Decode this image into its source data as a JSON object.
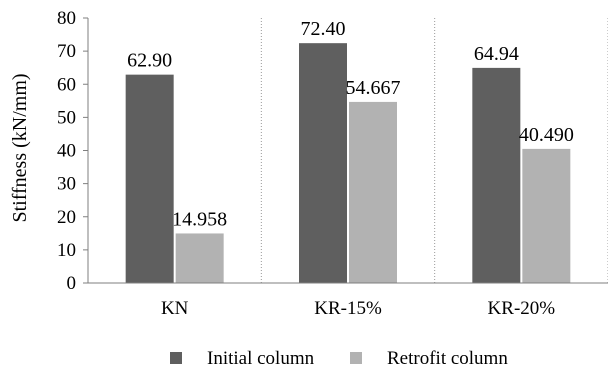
{
  "chart_data": {
    "type": "bar",
    "categories": [
      "KN",
      "KR-15%",
      "KR-20%"
    ],
    "series": [
      {
        "name": "Initial column",
        "values": [
          62.9,
          72.4,
          64.94
        ],
        "labels": [
          "62.90",
          "72.40",
          "64.94"
        ],
        "color": "#5f5f5f"
      },
      {
        "name": "Retrofit column",
        "values": [
          14.958,
          54.667,
          40.49
        ],
        "labels": [
          "14.958",
          "54.667",
          "40.490"
        ],
        "color": "#b2b2b2"
      }
    ],
    "title": "",
    "xlabel": "",
    "ylabel": "Stiffness  (kN/mm)",
    "ylim": [
      0,
      80
    ],
    "yticks": [
      0,
      10,
      20,
      30,
      40,
      50,
      60,
      70,
      80
    ],
    "grid": "vertical dotted between categories",
    "legend": "bottom"
  }
}
